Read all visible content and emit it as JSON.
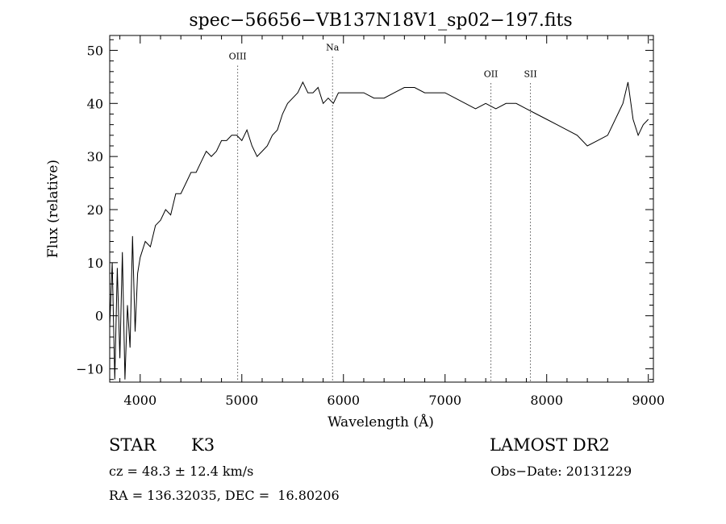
{
  "chart_data": {
    "type": "line",
    "title": "spec−56656−VB137N18V1_sp02−197.fits",
    "xlabel": "Wavelength (Å)",
    "ylabel": "Flux (relative)",
    "xlim": [
      3700,
      9050
    ],
    "ylim": [
      -12.5,
      52.8
    ],
    "xticks": [
      4000,
      5000,
      6000,
      7000,
      8000,
      9000
    ],
    "yticks": [
      -10,
      0,
      10,
      20,
      30,
      40,
      50
    ],
    "ytick_labels": [
      "−10",
      "0",
      "10",
      "20",
      "30",
      "40",
      "50"
    ],
    "grid": false,
    "line_marks": [
      {
        "label": "OIII",
        "x": 4959,
        "label_y": 48.3
      },
      {
        "label": "Na",
        "x": 5893,
        "label_y": 50.0
      },
      {
        "label": "OII",
        "x": 7451,
        "label_y": 45.0
      },
      {
        "label": "SII",
        "x": 7840,
        "label_y": 45.0
      }
    ],
    "series": [
      {
        "x": [
          3700,
          3725,
          3750,
          3775,
          3800,
          3825,
          3850,
          3875,
          3900,
          3925,
          3950,
          3975,
          4000,
          4050,
          4100,
          4150,
          4200,
          4250,
          4300,
          4350,
          4400,
          4450,
          4500,
          4550,
          4600,
          4650,
          4700,
          4750,
          4800,
          4850,
          4900,
          4950,
          5000,
          5050,
          5100,
          5150,
          5200,
          5250,
          5300,
          5350,
          5400,
          5450,
          5500,
          5550,
          5600,
          5650,
          5700,
          5750,
          5800,
          5850,
          5900,
          5950,
          6000,
          6100,
          6200,
          6300,
          6400,
          6500,
          6600,
          6700,
          6800,
          6900,
          7000,
          7100,
          7200,
          7300,
          7400,
          7500,
          7600,
          7700,
          7800,
          7900,
          8000,
          8100,
          8200,
          8300,
          8400,
          8500,
          8600,
          8700,
          8750,
          8800,
          8850,
          8900,
          8950,
          9000
        ],
        "y": [
          -2,
          10,
          -12,
          9,
          -8,
          12,
          -12,
          2,
          -6,
          15,
          -3,
          8,
          11,
          14,
          13,
          17,
          18,
          20,
          19,
          23,
          23,
          25,
          27,
          27,
          29,
          31,
          30,
          31,
          33,
          33,
          34,
          34,
          33,
          35,
          32,
          30,
          31,
          32,
          34,
          35,
          38,
          40,
          41,
          42,
          44,
          42,
          42,
          43,
          40,
          41,
          40,
          42,
          42,
          42,
          42,
          41,
          41,
          42,
          43,
          43,
          42,
          42,
          42,
          41,
          40,
          39,
          40,
          39,
          40,
          40,
          39,
          38,
          37,
          36,
          35,
          34,
          32,
          33,
          34,
          38,
          40,
          44,
          37,
          34,
          36,
          37
        ]
      }
    ]
  },
  "info": {
    "object_class": "STAR",
    "subclass": "K3",
    "survey": "LAMOST DR2",
    "velocity": "cz = 48.3 ± 12.4 km/s",
    "obs_date": "Obs−Date: 20131229",
    "coords": "RA = 136.32035, DEC =  16.80206"
  }
}
